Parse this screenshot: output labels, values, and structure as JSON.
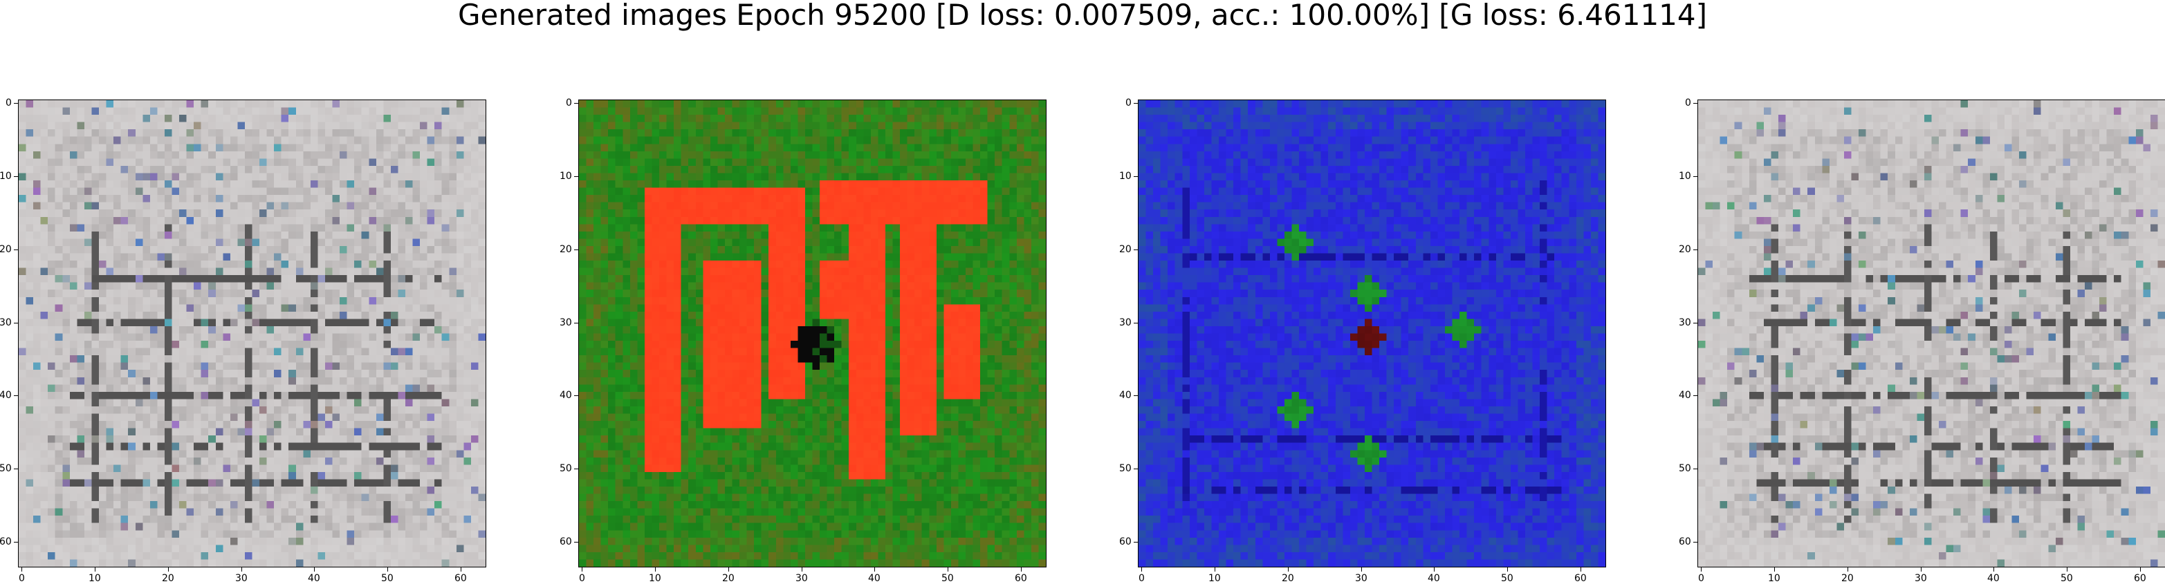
{
  "figure": {
    "title": "Generated images Epoch 95200 [D loss: 0.007509, acc.: 100.00%] [G loss: 6.461114]"
  },
  "axes_ticks": {
    "x": [
      "0",
      "10",
      "20",
      "30",
      "40",
      "50",
      "60"
    ],
    "y": [
      "0",
      "10",
      "20",
      "30",
      "40",
      "50",
      "60"
    ]
  },
  "panels": [
    {
      "name": "generated-image-1",
      "base": "#c8c4c4",
      "dark": "#2a2a2a",
      "accent": "#e8e8e8",
      "figure_color": "#000000"
    },
    {
      "name": "generated-image-2",
      "base": "#1c8a1c",
      "dark": "#0a3d0a",
      "accent": "#ff3a1a",
      "figure_color": "#ff3f1e"
    },
    {
      "name": "generated-image-3",
      "base": "#2b27e6",
      "dark": "#0d0a7a",
      "accent": "#1e9e2e",
      "figure_color": "#6a1010"
    },
    {
      "name": "generated-image-4",
      "base": "#c8c4c4",
      "dark": "#2a2a2a",
      "accent": "#e8e8e8",
      "figure_color": "#000000"
    }
  ]
}
